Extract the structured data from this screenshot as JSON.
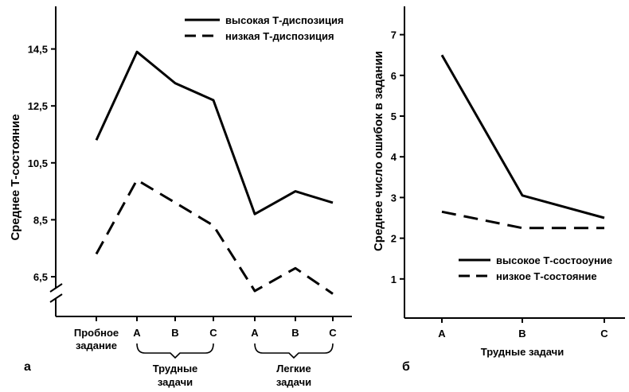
{
  "chart_data": [
    {
      "type": "line",
      "panel_label": "а",
      "ylabel": "Среднее Т-состояние",
      "ylim": [
        5.5,
        16
      ],
      "yticks": [
        "6,5",
        "8,5",
        "10,5",
        "12,5",
        "14,5"
      ],
      "ytick_values": [
        6.5,
        8.5,
        10.5,
        12.5,
        14.5
      ],
      "axis_break": true,
      "categories": [
        "Пробное задание",
        "A",
        "B",
        "C",
        "A",
        "B",
        "C"
      ],
      "category_lines": [
        [
          "Пробное",
          "задание"
        ],
        [
          "A"
        ],
        [
          "B"
        ],
        [
          "C"
        ],
        [
          "A"
        ],
        [
          "B"
        ],
        [
          "C"
        ]
      ],
      "groups": [
        {
          "label_lines": [
            "Трудные",
            "задачи"
          ],
          "from": 1,
          "to": 3
        },
        {
          "label_lines": [
            "Легкие",
            "задачи"
          ],
          "from": 4,
          "to": 6
        }
      ],
      "series": [
        {
          "name": "высокая Т-диспозиция",
          "style": "solid",
          "values": [
            11.3,
            14.4,
            13.3,
            12.7,
            8.7,
            9.5,
            9.1
          ]
        },
        {
          "name": "низкая Т-диспозиция",
          "style": "dashed",
          "values": [
            7.3,
            9.9,
            9.1,
            8.3,
            6.0,
            6.8,
            5.9
          ]
        }
      ],
      "legend_position": "top-right"
    },
    {
      "type": "line",
      "panel_label": "б",
      "ylabel": "Среднее число ошибок в задании",
      "xlabel": "Трудные задачи",
      "ylim": [
        0,
        7.7
      ],
      "yticks": [
        "1",
        "2",
        "3",
        "4",
        "5",
        "6",
        "7"
      ],
      "ytick_values": [
        1,
        2,
        3,
        4,
        5,
        6,
        7
      ],
      "categories": [
        "A",
        "B",
        "C"
      ],
      "series": [
        {
          "name": "высокое Т-состооуние",
          "style": "solid",
          "values": [
            6.5,
            3.05,
            2.5
          ]
        },
        {
          "name": "низкое Т-состояние",
          "style": "dashed",
          "values": [
            2.65,
            2.25,
            2.25
          ]
        }
      ],
      "legend_position": "bottom-right"
    }
  ]
}
